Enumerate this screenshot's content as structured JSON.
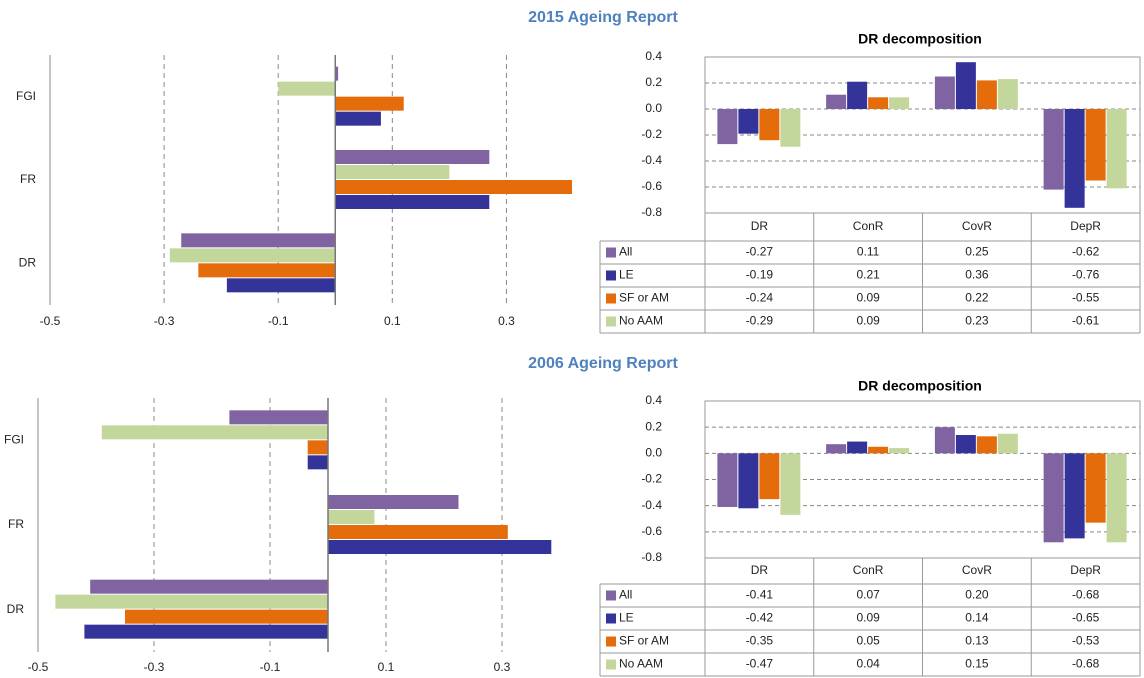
{
  "chart_data": [
    {
      "type": "hbar",
      "title": "2015 Ageing Report",
      "categories": [
        "FGI",
        "FR",
        "DR"
      ],
      "series": [
        {
          "color": "#8064a2",
          "values": [
            0.005,
            0.27,
            -0.27
          ]
        },
        {
          "color": "#333399",
          "values": [
            0.08,
            0.27,
            -0.19
          ]
        },
        {
          "color": "#e46c0a",
          "values": [
            0.12,
            0.415,
            -0.24
          ]
        },
        {
          "color": "#c3d69b",
          "values": [
            -0.1,
            0.2,
            -0.29
          ]
        }
      ],
      "xlim": [
        -0.5,
        0.45
      ],
      "xticks": [
        -0.5,
        -0.3,
        -0.1,
        0.1,
        0.3
      ],
      "grid": true
    },
    {
      "type": "bar",
      "title": "DR decomposition",
      "categories": [
        "DR",
        "ConR",
        "CovR",
        "DepR"
      ],
      "series": [
        {
          "name": "All",
          "color": "#8064a2",
          "values": [
            -0.27,
            0.11,
            0.25,
            -0.62
          ],
          "value_labels": [
            "-0.27",
            "0.11",
            "0.25",
            "-0.62"
          ]
        },
        {
          "name": "LE",
          "color": "#333399",
          "values": [
            -0.19,
            0.21,
            0.36,
            -0.76
          ],
          "value_labels": [
            "-0.19",
            "0.21",
            "0.36",
            "-0.76"
          ]
        },
        {
          "name": "SF or AM",
          "color": "#e46c0a",
          "values": [
            -0.24,
            0.09,
            0.22,
            -0.55
          ],
          "value_labels": [
            "-0.24",
            "0.09",
            "0.22",
            "-0.55"
          ]
        },
        {
          "name": "No AAM",
          "color": "#c3d69b",
          "values": [
            -0.29,
            0.09,
            0.23,
            -0.61
          ],
          "value_labels": [
            "-0.29",
            "0.09",
            "0.23",
            "-0.61"
          ]
        }
      ],
      "ylim": [
        -0.8,
        0.4
      ],
      "yticks": [
        0.4,
        0.2,
        {
          "value": 0,
          "label": "0.0"
        },
        -0.2,
        -0.4,
        -0.6,
        -0.8
      ],
      "grid": true
    },
    {
      "type": "hbar",
      "title": "2006 Ageing Report",
      "categories": [
        "FGI",
        "FR",
        "DR"
      ],
      "series": [
        {
          "color": "#8064a2",
          "values": [
            -0.17,
            0.225,
            -0.41
          ]
        },
        {
          "color": "#333399",
          "values": [
            -0.035,
            0.385,
            -0.42
          ]
        },
        {
          "color": "#e46c0a",
          "values": [
            -0.035,
            0.31,
            -0.35
          ]
        },
        {
          "color": "#c3d69b",
          "values": [
            -0.39,
            0.08,
            -0.47
          ]
        }
      ],
      "xlim": [
        -0.5,
        0.4
      ],
      "xticks": [
        -0.5,
        -0.3,
        -0.1,
        0.1,
        0.3
      ],
      "grid": true
    },
    {
      "type": "bar",
      "title": "DR decomposition",
      "categories": [
        "DR",
        "ConR",
        "CovR",
        "DepR"
      ],
      "series": [
        {
          "name": "All",
          "color": "#8064a2",
          "values": [
            -0.41,
            0.07,
            0.2,
            -0.68
          ],
          "value_labels": [
            "-0.41",
            "0.07",
            "0.20",
            "-0.68"
          ]
        },
        {
          "name": "LE",
          "color": "#333399",
          "values": [
            -0.42,
            0.09,
            0.14,
            -0.65
          ],
          "value_labels": [
            "-0.42",
            "0.09",
            "0.14",
            "-0.65"
          ]
        },
        {
          "name": "SF or AM",
          "color": "#e46c0a",
          "values": [
            -0.35,
            0.05,
            0.13,
            -0.53
          ],
          "value_labels": [
            "-0.35",
            "0.05",
            "0.13",
            "-0.53"
          ]
        },
        {
          "name": "No AAM",
          "color": "#c3d69b",
          "values": [
            -0.47,
            0.04,
            0.15,
            -0.68
          ],
          "value_labels": [
            "-0.47",
            "0.04",
            "0.15",
            "-0.68"
          ]
        }
      ],
      "ylim": [
        -0.8,
        0.4
      ],
      "yticks": [
        0.4,
        0.2,
        {
          "value": 0,
          "label": "0.0"
        },
        -0.2,
        -0.4,
        -0.6,
        -0.8
      ],
      "grid": true
    }
  ]
}
